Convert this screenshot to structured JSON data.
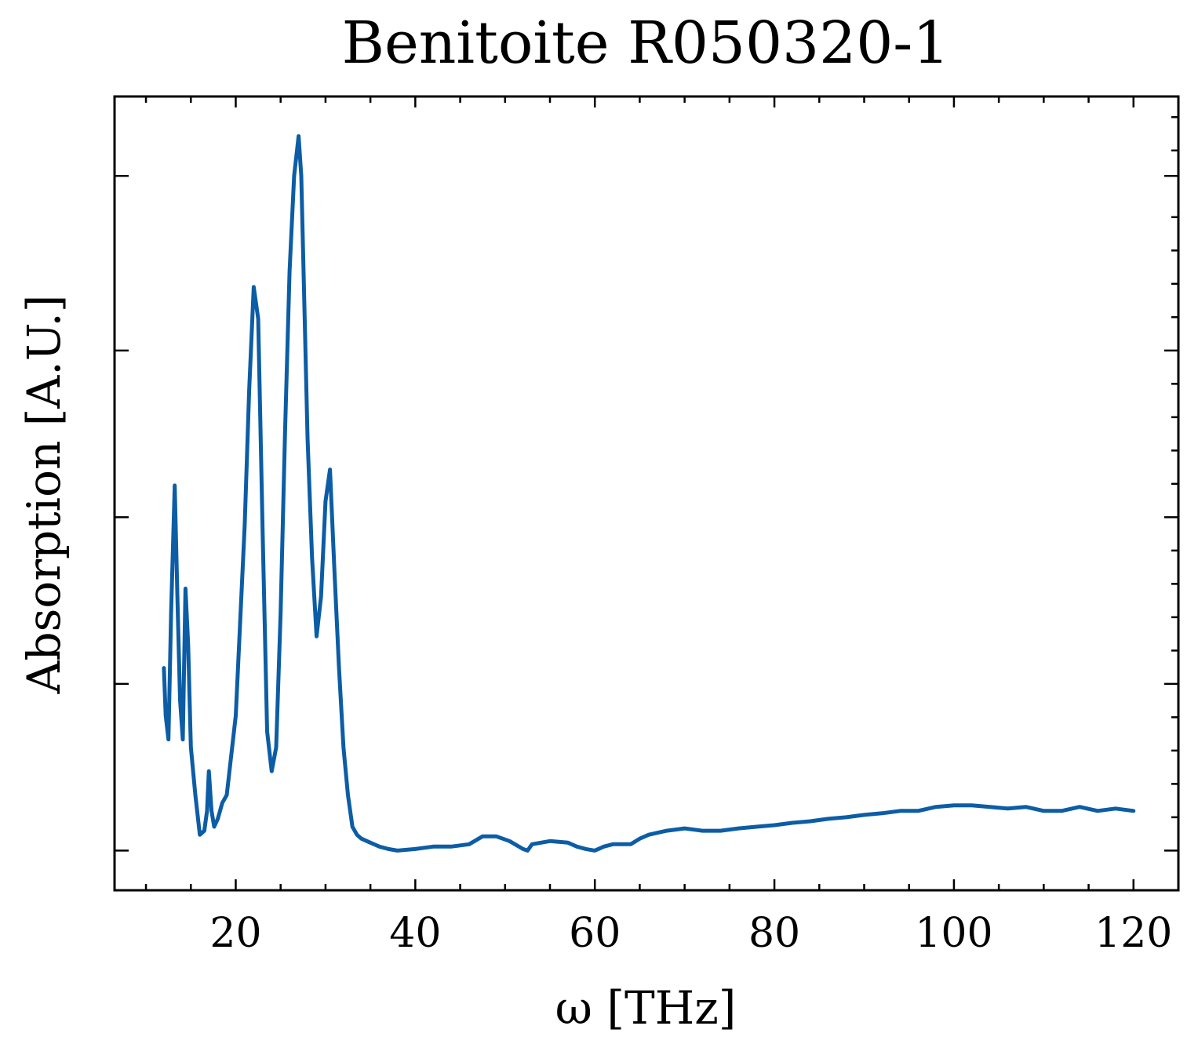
{
  "chart_data": {
    "type": "line",
    "title": "Benitoite R050320-1",
    "xlabel": "ω [THz]",
    "ylabel": "Absorption [A.U.]",
    "xlim": [
      6.5,
      125
    ],
    "ylim": [
      0,
      1
    ],
    "x_ticks": [
      20,
      40,
      60,
      80,
      100,
      120
    ],
    "x_tick_labels": [
      "20",
      "40",
      "60",
      "80",
      "100",
      "120"
    ],
    "y_major_ticks": [
      0.05,
      0.26,
      0.47,
      0.68,
      0.9
    ],
    "y_tick_labels": [],
    "y_minor_step": 0.042,
    "x_minor_step": 5,
    "grid": false,
    "line_color": "#0C5DA5",
    "series": [
      {
        "x": [
          12.0,
          12.2,
          12.5,
          12.8,
          13.2,
          13.5,
          13.8,
          14.1,
          14.4,
          14.7,
          15.0,
          15.5,
          16.0,
          16.5,
          16.8,
          17.0,
          17.3,
          17.6,
          18.0,
          18.5,
          19.0,
          20.0,
          21.0,
          21.5,
          22.0,
          22.5,
          23.0,
          23.5,
          24.0,
          24.5,
          25.0,
          25.5,
          26.0,
          26.5,
          27.0,
          27.3,
          27.6,
          28.0,
          28.5,
          29.0,
          29.5,
          30.0,
          30.5,
          31.0,
          31.5,
          32.0,
          32.5,
          33.0,
          33.5,
          34.0,
          35.0,
          36.0,
          37.0,
          38.0,
          40.0,
          42.0,
          44.0,
          46.0,
          47.5,
          49.0,
          50.5,
          52.0,
          52.5,
          53.0,
          55.0,
          57.0,
          58.0,
          59.0,
          60.0,
          61.0,
          62.0,
          64.0,
          65.0,
          66.0,
          68.0,
          70.0,
          72.0,
          74.0,
          76.0,
          78.0,
          80.0,
          82.0,
          84.0,
          86.0,
          88.0,
          90.0,
          92.0,
          94.0,
          96.0,
          98.0,
          100.0,
          102.0,
          104.0,
          106.0,
          108.0,
          110.0,
          112.0,
          114.0,
          116.0,
          118.0,
          120.0
        ],
        "y": [
          0.28,
          0.22,
          0.19,
          0.35,
          0.51,
          0.37,
          0.24,
          0.19,
          0.38,
          0.31,
          0.18,
          0.12,
          0.07,
          0.075,
          0.1,
          0.15,
          0.1,
          0.08,
          0.09,
          0.11,
          0.12,
          0.22,
          0.46,
          0.63,
          0.76,
          0.72,
          0.45,
          0.2,
          0.15,
          0.18,
          0.35,
          0.58,
          0.78,
          0.9,
          0.95,
          0.9,
          0.76,
          0.57,
          0.42,
          0.32,
          0.37,
          0.49,
          0.53,
          0.4,
          0.28,
          0.18,
          0.12,
          0.08,
          0.07,
          0.065,
          0.06,
          0.055,
          0.052,
          0.05,
          0.052,
          0.055,
          0.055,
          0.058,
          0.068,
          0.068,
          0.062,
          0.052,
          0.05,
          0.058,
          0.062,
          0.06,
          0.055,
          0.052,
          0.05,
          0.055,
          0.058,
          0.058,
          0.065,
          0.07,
          0.075,
          0.078,
          0.075,
          0.075,
          0.078,
          0.08,
          0.082,
          0.085,
          0.087,
          0.09,
          0.092,
          0.095,
          0.097,
          0.1,
          0.1,
          0.105,
          0.107,
          0.107,
          0.105,
          0.103,
          0.105,
          0.1,
          0.1,
          0.105,
          0.1,
          0.103,
          0.1
        ]
      }
    ]
  }
}
